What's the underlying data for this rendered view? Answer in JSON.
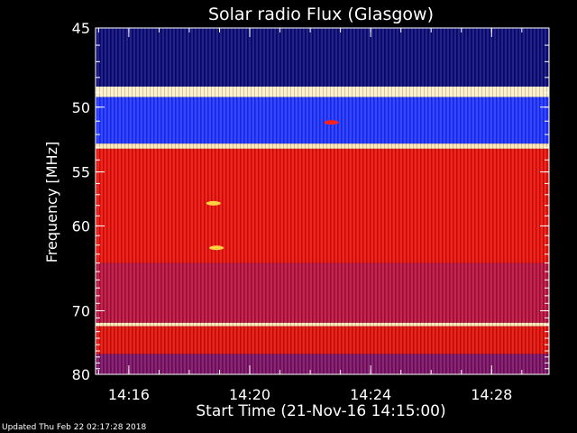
{
  "chart_data": {
    "type": "heatmap",
    "title": "Solar radio Flux (Glasgow)",
    "xlabel": "Start Time (21-Nov-16 14:15:00)",
    "ylabel": "Frequency [MHz]",
    "x_ticks": [
      "14:16",
      "14:20",
      "14:24",
      "14:28"
    ],
    "x_tick_minutes_after_14_00": [
      16,
      20,
      24,
      28
    ],
    "xlim_minutes_after_14_00": [
      14.9,
      29.9
    ],
    "y_ticks": [
      45,
      50,
      55,
      60,
      70,
      80
    ],
    "ylim": [
      45,
      80
    ],
    "y_scale": "reciprocal",
    "colormap": "blue-red-yellow-white",
    "bands": [
      {
        "from": 45.0,
        "to": 48.6,
        "level": "low",
        "color": "#0a0a78"
      },
      {
        "from": 48.6,
        "to": 49.3,
        "level": "very high",
        "color": "#fff0c8"
      },
      {
        "from": 49.3,
        "to": 52.7,
        "level": "low-medium",
        "color": "#1e32ff"
      },
      {
        "from": 52.7,
        "to": 53.1,
        "level": "very high",
        "color": "#ffe6b4"
      },
      {
        "from": 53.1,
        "to": 64.0,
        "level": "high",
        "color": "#e81008"
      },
      {
        "from": 64.0,
        "to": 71.7,
        "level": "medium-high",
        "color": "#b8103c"
      },
      {
        "from": 71.7,
        "to": 72.2,
        "level": "very high",
        "color": "#ffe6b4"
      },
      {
        "from": 72.2,
        "to": 76.5,
        "level": "high",
        "color": "#e01008"
      },
      {
        "from": 76.5,
        "to": 80.0,
        "level": "medium",
        "color": "#7a1064"
      }
    ],
    "highlights": [
      {
        "time_minutes_after_14_00": 18.8,
        "freq": 57.8,
        "color": "#ffd040"
      },
      {
        "time_minutes_after_14_00": 18.9,
        "freq": 62.3,
        "color": "#ffd040"
      },
      {
        "time_minutes_after_14_00": 22.7,
        "freq": 51.1,
        "color": "#ff2020"
      }
    ]
  },
  "footer": {
    "updated": "Updated Thu Feb 22 02:17:28 2018"
  }
}
